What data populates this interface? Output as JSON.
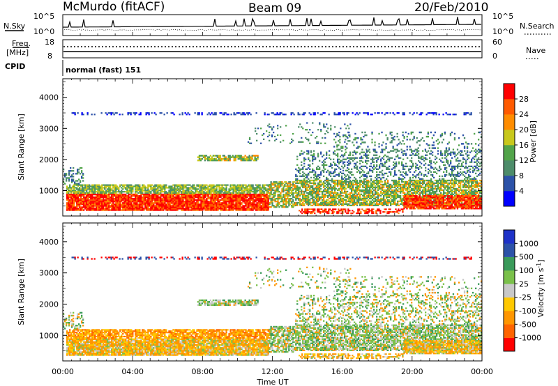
{
  "header": {
    "station": "McMurdo (fitACF)",
    "beam": "Beam 09",
    "date": "20/Feb/2010"
  },
  "top_panels": {
    "nsky_label": "N.Sky",
    "nsky_ticks": [
      "10^5",
      "10^0"
    ],
    "nsearch_label": "N.Search",
    "nsearch_ticks": [
      "10^5",
      "10^0"
    ],
    "freq_label_1": "Freq.",
    "freq_label_2": "[MHz]",
    "freq_ticks": [
      "18",
      "8"
    ],
    "nave_label": "Nave",
    "nave_ticks": [
      "60",
      "0"
    ],
    "cpid_label": "CPID",
    "cpid_value": "normal (fast) 151"
  },
  "colors": {
    "power": [
      "#0000ff",
      "#2c52a8",
      "#4d8c6a",
      "#52a44a",
      "#c8c81c",
      "#ff8c00",
      "#ff5a00",
      "#ff0000"
    ],
    "velocity": [
      "#ff0000",
      "#ff6400",
      "#ff9600",
      "#ffc800",
      "#c8c8c8",
      "#7ac04a",
      "#3a9a5a",
      "#2c52a8",
      "#1e32c8"
    ]
  },
  "chart_data": [
    {
      "type": "heatmap",
      "quantity": "Power",
      "ylabel": "Slant Range [km]",
      "xlabel": "",
      "x_ticks": [
        "00:00",
        "04:00",
        "08:00",
        "12:00",
        "16:00",
        "20:00",
        "00:00"
      ],
      "x_range_hours": [
        0,
        24
      ],
      "y_range_km": [
        180,
        4600
      ],
      "y_ticks": [
        1000,
        2000,
        3000,
        4000
      ],
      "colorbar": {
        "label": "Power [dB]",
        "range": [
          0,
          32
        ],
        "ticks": [
          4,
          8,
          12,
          16,
          20,
          24,
          28
        ]
      }
    },
    {
      "type": "heatmap",
      "quantity": "Velocity",
      "ylabel": "Slant Range [km]",
      "xlabel": "Time UT",
      "x_ticks": [
        "00:00",
        "04:00",
        "08:00",
        "12:00",
        "16:00",
        "20:00",
        "00:00"
      ],
      "x_range_hours": [
        0,
        24
      ],
      "y_range_km": [
        180,
        4600
      ],
      "y_ticks": [
        1000,
        2000,
        3000,
        4000
      ],
      "colorbar": {
        "label": "Velocity [m s^-1]",
        "ticks": [
          "1000",
          "500",
          "100",
          "25",
          "-25",
          "-100",
          "-500",
          "-1000"
        ]
      }
    }
  ]
}
